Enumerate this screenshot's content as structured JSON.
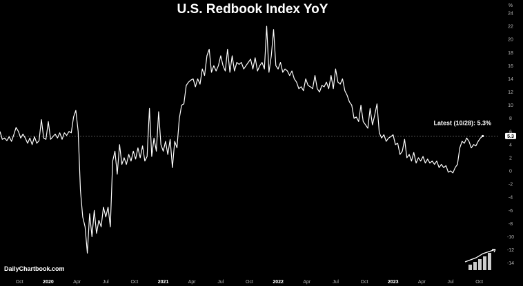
{
  "chart_data": {
    "type": "line",
    "title": "U.S. Redbook Index YoY",
    "unit": "%",
    "ylim": [
      -15,
      25
    ],
    "yticks": [
      24,
      22,
      20,
      18,
      16,
      14,
      12,
      10,
      8,
      6,
      4,
      2,
      0,
      -2,
      -4,
      -6,
      -8,
      -10,
      -12,
      -14
    ],
    "xlim": [
      2019.58,
      2023.92
    ],
    "xticks": [
      {
        "x": 2019.75,
        "label": "Oct",
        "bold": false
      },
      {
        "x": 2020.0,
        "label": "2020",
        "bold": true
      },
      {
        "x": 2020.25,
        "label": "Apr",
        "bold": false
      },
      {
        "x": 2020.5,
        "label": "Jul",
        "bold": false
      },
      {
        "x": 2020.75,
        "label": "Oct",
        "bold": false
      },
      {
        "x": 2021.0,
        "label": "2021",
        "bold": true
      },
      {
        "x": 2021.25,
        "label": "Apr",
        "bold": false
      },
      {
        "x": 2021.5,
        "label": "Jul",
        "bold": false
      },
      {
        "x": 2021.75,
        "label": "Oct",
        "bold": false
      },
      {
        "x": 2022.0,
        "label": "2022",
        "bold": true
      },
      {
        "x": 2022.25,
        "label": "Apr",
        "bold": false
      },
      {
        "x": 2022.5,
        "label": "Jul",
        "bold": false
      },
      {
        "x": 2022.75,
        "label": "Oct",
        "bold": false
      },
      {
        "x": 2023.0,
        "label": "2023",
        "bold": true
      },
      {
        "x": 2023.25,
        "label": "Apr",
        "bold": false
      },
      {
        "x": 2023.5,
        "label": "Jul",
        "bold": false
      },
      {
        "x": 2023.75,
        "label": "Oct",
        "bold": false
      }
    ],
    "series": [
      {
        "name": "Redbook YoY",
        "color": "#ffffff",
        "points": [
          [
            2019.58,
            6.0
          ],
          [
            2019.6,
            4.8
          ],
          [
            2019.62,
            5.0
          ],
          [
            2019.64,
            4.6
          ],
          [
            2019.66,
            5.2
          ],
          [
            2019.68,
            4.5
          ],
          [
            2019.7,
            5.5
          ],
          [
            2019.72,
            6.6
          ],
          [
            2019.74,
            6.0
          ],
          [
            2019.76,
            5.0
          ],
          [
            2019.78,
            5.6
          ],
          [
            2019.8,
            5.0
          ],
          [
            2019.82,
            4.2
          ],
          [
            2019.84,
            5.0
          ],
          [
            2019.86,
            4.0
          ],
          [
            2019.88,
            5.2
          ],
          [
            2019.9,
            4.2
          ],
          [
            2019.92,
            4.6
          ],
          [
            2019.94,
            7.8
          ],
          [
            2019.96,
            5.0
          ],
          [
            2019.98,
            4.8
          ],
          [
            2020.0,
            7.5
          ],
          [
            2020.02,
            4.8
          ],
          [
            2020.04,
            5.2
          ],
          [
            2020.06,
            5.6
          ],
          [
            2020.08,
            5.0
          ],
          [
            2020.1,
            5.8
          ],
          [
            2020.12,
            4.8
          ],
          [
            2020.14,
            5.8
          ],
          [
            2020.16,
            5.4
          ],
          [
            2020.18,
            6.0
          ],
          [
            2020.2,
            5.8
          ],
          [
            2020.22,
            8.2
          ],
          [
            2020.24,
            9.2
          ],
          [
            2020.26,
            6.0
          ],
          [
            2020.28,
            -3.0
          ],
          [
            2020.3,
            -7.0
          ],
          [
            2020.32,
            -8.5
          ],
          [
            2020.34,
            -12.5
          ],
          [
            2020.36,
            -6.5
          ],
          [
            2020.38,
            -10.0
          ],
          [
            2020.4,
            -6.0
          ],
          [
            2020.42,
            -9.5
          ],
          [
            2020.44,
            -7.5
          ],
          [
            2020.46,
            -8.5
          ],
          [
            2020.48,
            -5.5
          ],
          [
            2020.5,
            -7.0
          ],
          [
            2020.52,
            -5.5
          ],
          [
            2020.54,
            -8.5
          ],
          [
            2020.56,
            1.5
          ],
          [
            2020.58,
            3.0
          ],
          [
            2020.6,
            -0.5
          ],
          [
            2020.62,
            4.0
          ],
          [
            2020.64,
            1.0
          ],
          [
            2020.66,
            2.0
          ],
          [
            2020.68,
            1.0
          ],
          [
            2020.7,
            2.5
          ],
          [
            2020.72,
            1.5
          ],
          [
            2020.74,
            3.0
          ],
          [
            2020.76,
            1.8
          ],
          [
            2020.78,
            3.5
          ],
          [
            2020.8,
            2.0
          ],
          [
            2020.82,
            3.8
          ],
          [
            2020.84,
            1.5
          ],
          [
            2020.86,
            2.2
          ],
          [
            2020.88,
            9.5
          ],
          [
            2020.9,
            2.2
          ],
          [
            2020.92,
            5.0
          ],
          [
            2020.94,
            3.0
          ],
          [
            2020.96,
            9.0
          ],
          [
            2020.98,
            4.0
          ],
          [
            2021.0,
            3.0
          ],
          [
            2021.02,
            4.5
          ],
          [
            2021.04,
            2.5
          ],
          [
            2021.06,
            4.8
          ],
          [
            2021.08,
            0.5
          ],
          [
            2021.1,
            4.5
          ],
          [
            2021.12,
            3.5
          ],
          [
            2021.14,
            8.0
          ],
          [
            2021.16,
            10.0
          ],
          [
            2021.18,
            10.2
          ],
          [
            2021.2,
            13.0
          ],
          [
            2021.22,
            13.5
          ],
          [
            2021.24,
            13.8
          ],
          [
            2021.26,
            14.0
          ],
          [
            2021.28,
            12.8
          ],
          [
            2021.3,
            14.0
          ],
          [
            2021.32,
            13.2
          ],
          [
            2021.34,
            15.5
          ],
          [
            2021.36,
            14.5
          ],
          [
            2021.38,
            17.5
          ],
          [
            2021.4,
            18.5
          ],
          [
            2021.42,
            15.0
          ],
          [
            2021.44,
            16.0
          ],
          [
            2021.46,
            15.2
          ],
          [
            2021.48,
            16.0
          ],
          [
            2021.5,
            17.5
          ],
          [
            2021.52,
            16.0
          ],
          [
            2021.54,
            15.2
          ],
          [
            2021.56,
            18.5
          ],
          [
            2021.58,
            15.0
          ],
          [
            2021.6,
            17.5
          ],
          [
            2021.62,
            15.2
          ],
          [
            2021.64,
            16.5
          ],
          [
            2021.66,
            16.2
          ],
          [
            2021.68,
            16.5
          ],
          [
            2021.7,
            15.5
          ],
          [
            2021.72,
            16.0
          ],
          [
            2021.74,
            16.5
          ],
          [
            2021.76,
            17.0
          ],
          [
            2021.78,
            15.5
          ],
          [
            2021.8,
            17.2
          ],
          [
            2021.82,
            15.2
          ],
          [
            2021.84,
            16.0
          ],
          [
            2021.86,
            16.5
          ],
          [
            2021.88,
            15.5
          ],
          [
            2021.9,
            22.0
          ],
          [
            2021.92,
            15.0
          ],
          [
            2021.94,
            17.5
          ],
          [
            2021.96,
            21.5
          ],
          [
            2021.98,
            16.0
          ],
          [
            2022.0,
            15.5
          ],
          [
            2022.02,
            16.5
          ],
          [
            2022.04,
            15.0
          ],
          [
            2022.06,
            15.5
          ],
          [
            2022.08,
            15.2
          ],
          [
            2022.1,
            14.5
          ],
          [
            2022.12,
            15.2
          ],
          [
            2022.14,
            14.0
          ],
          [
            2022.16,
            13.5
          ],
          [
            2022.18,
            12.5
          ],
          [
            2022.2,
            12.8
          ],
          [
            2022.22,
            12.2
          ],
          [
            2022.24,
            14.0
          ],
          [
            2022.26,
            13.0
          ],
          [
            2022.28,
            12.8
          ],
          [
            2022.3,
            12.5
          ],
          [
            2022.32,
            14.5
          ],
          [
            2022.34,
            12.5
          ],
          [
            2022.36,
            12.0
          ],
          [
            2022.38,
            13.0
          ],
          [
            2022.4,
            12.8
          ],
          [
            2022.42,
            13.5
          ],
          [
            2022.44,
            12.5
          ],
          [
            2022.46,
            14.5
          ],
          [
            2022.48,
            12.5
          ],
          [
            2022.5,
            15.5
          ],
          [
            2022.52,
            13.5
          ],
          [
            2022.54,
            13.2
          ],
          [
            2022.56,
            14.0
          ],
          [
            2022.58,
            12.2
          ],
          [
            2022.6,
            11.5
          ],
          [
            2022.62,
            10.5
          ],
          [
            2022.64,
            10.0
          ],
          [
            2022.66,
            8.0
          ],
          [
            2022.68,
            8.2
          ],
          [
            2022.7,
            7.5
          ],
          [
            2022.72,
            10.0
          ],
          [
            2022.74,
            7.5
          ],
          [
            2022.76,
            7.0
          ],
          [
            2022.78,
            6.5
          ],
          [
            2022.8,
            9.5
          ],
          [
            2022.82,
            7.0
          ],
          [
            2022.84,
            8.5
          ],
          [
            2022.86,
            10.2
          ],
          [
            2022.88,
            5.8
          ],
          [
            2022.9,
            5.0
          ],
          [
            2022.92,
            5.5
          ],
          [
            2022.94,
            4.5
          ],
          [
            2022.96,
            5.0
          ],
          [
            2022.98,
            5.2
          ],
          [
            2023.0,
            5.5
          ],
          [
            2023.02,
            4.0
          ],
          [
            2023.04,
            4.2
          ],
          [
            2023.06,
            2.5
          ],
          [
            2023.08,
            3.0
          ],
          [
            2023.1,
            4.8
          ],
          [
            2023.12,
            2.0
          ],
          [
            2023.14,
            2.5
          ],
          [
            2023.16,
            1.5
          ],
          [
            2023.18,
            2.8
          ],
          [
            2023.2,
            1.2
          ],
          [
            2023.22,
            2.0
          ],
          [
            2023.24,
            1.5
          ],
          [
            2023.26,
            2.2
          ],
          [
            2023.28,
            1.2
          ],
          [
            2023.3,
            1.8
          ],
          [
            2023.32,
            1.2
          ],
          [
            2023.34,
            1.5
          ],
          [
            2023.36,
            1.0
          ],
          [
            2023.38,
            1.5
          ],
          [
            2023.4,
            0.5
          ],
          [
            2023.42,
            1.0
          ],
          [
            2023.44,
            0.5
          ],
          [
            2023.46,
            0.8
          ],
          [
            2023.48,
            -0.2
          ],
          [
            2023.5,
            0.0
          ],
          [
            2023.52,
            -0.3
          ],
          [
            2023.54,
            0.5
          ],
          [
            2023.56,
            1.0
          ],
          [
            2023.58,
            3.5
          ],
          [
            2023.6,
            4.5
          ],
          [
            2023.62,
            4.2
          ],
          [
            2023.64,
            5.0
          ],
          [
            2023.66,
            4.5
          ],
          [
            2023.68,
            3.5
          ],
          [
            2023.7,
            4.0
          ],
          [
            2023.72,
            3.8
          ],
          [
            2023.74,
            4.5
          ],
          [
            2023.76,
            5.0
          ],
          [
            2023.78,
            5.3
          ]
        ]
      }
    ],
    "reference_value": 5.3,
    "latest_badge": "5.3",
    "annotation": "Latest (10/28): 5.3%"
  },
  "branding": {
    "site": "DailyChartbook.com"
  }
}
